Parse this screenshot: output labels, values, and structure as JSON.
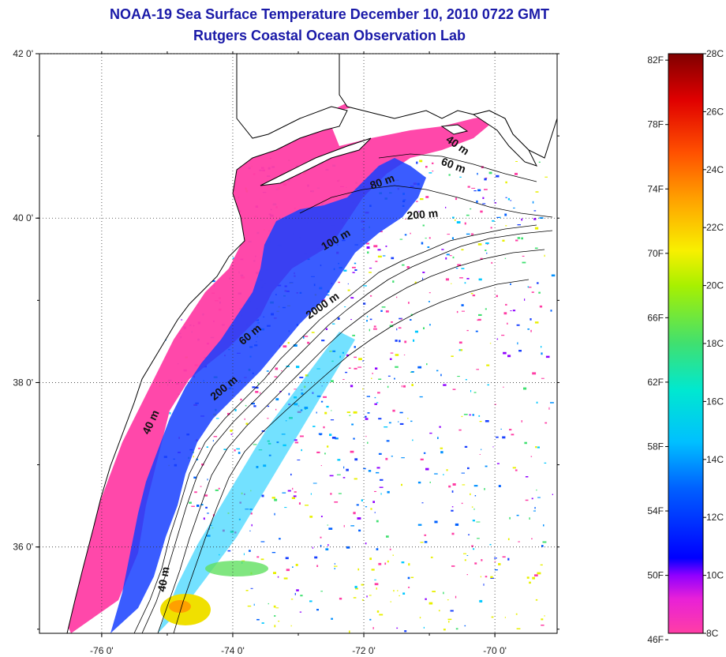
{
  "header": {
    "title_line1": "NOAA-19 Sea Surface Temperature December 10, 2010 0722 GMT",
    "title_line2": "Rutgers Coastal Ocean Observation Lab"
  },
  "map": {
    "lon_ticks": [
      {
        "value": -76,
        "label": "-76 0'"
      },
      {
        "value": -74,
        "label": "-74 0'"
      },
      {
        "value": -72,
        "label": "-72 0'"
      },
      {
        "value": -70,
        "label": "-70 0'"
      }
    ],
    "lat_ticks": [
      {
        "value": 42,
        "label": "42 0'"
      },
      {
        "value": 40,
        "label": "40 0'"
      },
      {
        "value": 38,
        "label": "38 0'"
      },
      {
        "value": 36,
        "label": "36 0'"
      }
    ],
    "lon_range": [
      -76.95,
      -69.05
    ],
    "lat_range": [
      34.95,
      42.0
    ],
    "grid": "dotted",
    "land_color": "#ffffff",
    "coastline_color": "#000000",
    "contour_labels": [
      {
        "text": "40 m",
        "lon": -70.6,
        "lat": 40.85,
        "angle": 35
      },
      {
        "text": "60 m",
        "lon": -70.65,
        "lat": 40.6,
        "angle": 20
      },
      {
        "text": "80 m",
        "lon": -71.7,
        "lat": 40.4,
        "angle": -20
      },
      {
        "text": "200 m",
        "lon": -71.1,
        "lat": 40.0,
        "angle": -5
      },
      {
        "text": "100 m",
        "lon": -72.4,
        "lat": 39.7,
        "angle": -30
      },
      {
        "text": "2000 m",
        "lon": -72.6,
        "lat": 38.9,
        "angle": -35
      },
      {
        "text": "60 m",
        "lon": -73.7,
        "lat": 38.55,
        "angle": -40
      },
      {
        "text": "200 m",
        "lon": -74.1,
        "lat": 37.9,
        "angle": -40
      },
      {
        "text": "40 m",
        "lon": -75.2,
        "lat": 37.5,
        "angle": -65
      },
      {
        "text": "40 m",
        "lon": -75.0,
        "lat": 35.6,
        "angle": -80
      }
    ]
  },
  "colorbar": {
    "left_labels": [
      "82F",
      "78F",
      "74F",
      "70F",
      "66F",
      "62F",
      "58F",
      "54F",
      "50F",
      "46F"
    ],
    "left_values_F": [
      82,
      78,
      74,
      70,
      66,
      62,
      58,
      54,
      50,
      46
    ],
    "right_labels": [
      "28C",
      "26C",
      "24C",
      "22C",
      "20C",
      "18C",
      "16C",
      "14C",
      "12C",
      "10C",
      "8C"
    ],
    "right_values_C": [
      28,
      26,
      24,
      22,
      20,
      18,
      16,
      14,
      12,
      10,
      8
    ],
    "range_C": [
      8,
      28
    ],
    "colors": [
      "#ff3ea5",
      "#c800ff",
      "#0000ff",
      "#0090ff",
      "#00e8e8",
      "#60e060",
      "#e8f000",
      "#ffa000",
      "#ff3000",
      "#e00000",
      "#800000"
    ]
  }
}
